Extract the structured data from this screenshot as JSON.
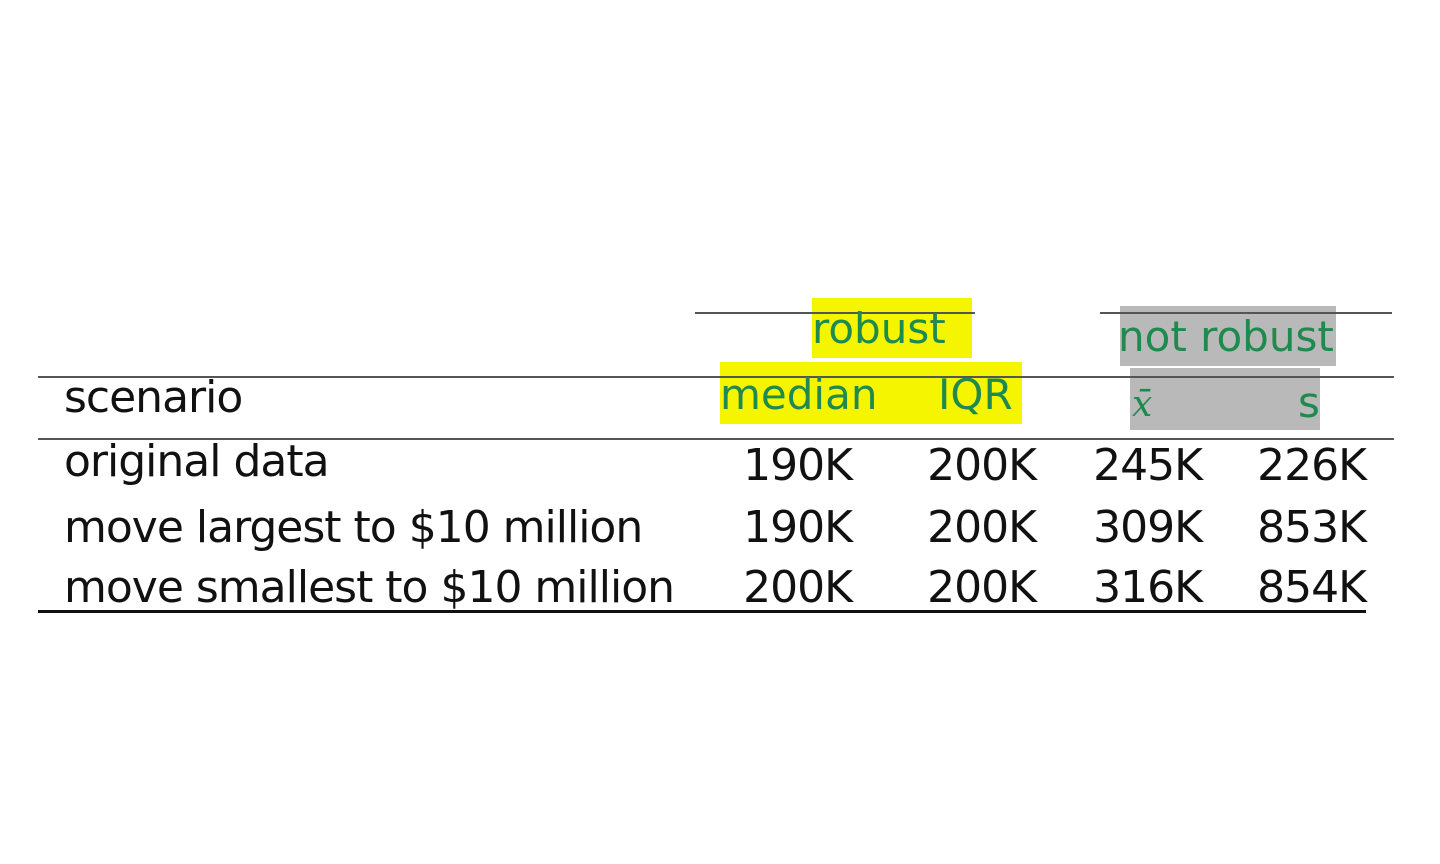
{
  "table": {
    "groups": {
      "robust": "robust",
      "not_robust": "not robust"
    },
    "columns": {
      "scenario": "scenario",
      "median": "median",
      "iqr": "IQR",
      "mean": "x̄",
      "sd": "s"
    },
    "rows": [
      {
        "scenario": "original data",
        "median": "190K",
        "iqr": "200K",
        "mean": "245K",
        "sd": "226K"
      },
      {
        "scenario": "move largest to $10 million",
        "median": "190K",
        "iqr": "200K",
        "mean": "309K",
        "sd": "853K"
      },
      {
        "scenario": "move smallest to $10 million",
        "median": "200K",
        "iqr": "200K",
        "mean": "316K",
        "sd": "854K"
      }
    ],
    "colors": {
      "header_text": "#1e8a4e",
      "robust_highlight": "#f5f500",
      "not_robust_highlight": "#b9b9b9"
    }
  }
}
